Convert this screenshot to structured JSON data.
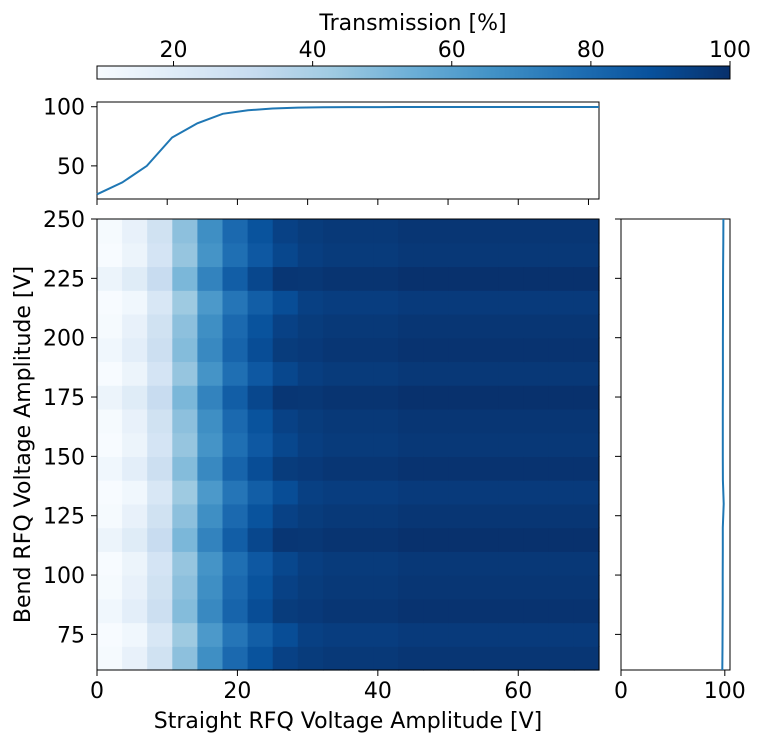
{
  "chart_data": [
    {
      "type": "heatmap",
      "xlabel": "Straight RFQ Voltage Amplitude [V]",
      "ylabel": "Bend RFQ Voltage Amplitude [V]",
      "xlim": [
        0,
        71.5
      ],
      "ylim": [
        60,
        250
      ],
      "x_ticks": [
        0,
        20,
        40,
        60
      ],
      "y_ticks": [
        75,
        100,
        125,
        150,
        175,
        200,
        225,
        250
      ],
      "x_tick_labels": [
        "0",
        "20",
        "40",
        "60"
      ],
      "y_tick_labels": [
        "75",
        "100",
        "125",
        "150",
        "175",
        "200",
        "225",
        "250"
      ],
      "x_bins": 20,
      "y_bins": 19,
      "colorbar": {
        "label": "Transmission [%]",
        "range": [
          9,
          100
        ],
        "ticks": [
          20,
          40,
          60,
          80,
          100
        ],
        "tick_labels": [
          "20",
          "40",
          "60",
          "80",
          "100"
        ],
        "colormap": "Blues",
        "low_color": "#f7fbff",
        "high_color": "#08306b"
      },
      "column_profile": [
        10,
        16,
        27,
        47,
        67,
        80,
        88,
        94,
        96,
        97,
        97,
        97,
        98,
        98,
        98,
        98,
        98,
        98,
        98,
        98
      ],
      "row_offsets": [
        0,
        -2,
        1,
        0,
        -1,
        2,
        0,
        -2,
        1,
        -1,
        0,
        2,
        -1,
        1,
        0,
        -2,
        2,
        -1,
        0
      ]
    },
    {
      "type": "line",
      "position": "top-marginal",
      "x": [
        0,
        3.6,
        7.1,
        10.7,
        14.3,
        17.9,
        21.5,
        25.0,
        28.6,
        32.2,
        35.8,
        39.3,
        42.9,
        46.5,
        50.1,
        53.6,
        57.2,
        60.8,
        64.4,
        68.0,
        71.5
      ],
      "y": [
        26,
        36,
        50,
        74,
        86,
        94,
        97,
        98.5,
        99.3,
        99.6,
        99.7,
        99.7,
        99.8,
        99.8,
        99.8,
        99.8,
        99.8,
        99.8,
        99.8,
        99.8,
        99.8
      ],
      "ylim": [
        22,
        104
      ],
      "y_ticks": [
        50,
        100
      ],
      "y_tick_labels": [
        "50",
        "100"
      ],
      "color": "#1f77b4"
    },
    {
      "type": "line",
      "position": "right-marginal",
      "y": [
        60,
        70,
        80,
        90,
        100,
        110,
        120,
        130,
        140,
        150,
        160,
        170,
        180,
        190,
        200,
        210,
        220,
        230,
        240,
        250
      ],
      "x": [
        97.6,
        97.8,
        97.9,
        98.0,
        98.0,
        98.1,
        98.1,
        98.9,
        98.2,
        98.1,
        98.1,
        98.1,
        98.2,
        98.2,
        98.2,
        98.3,
        98.3,
        98.4,
        98.5,
        98.6
      ],
      "xlim": [
        0,
        105
      ],
      "x_ticks": [
        0,
        100
      ],
      "x_tick_labels": [
        "0",
        "100"
      ],
      "color": "#1f77b4"
    }
  ]
}
